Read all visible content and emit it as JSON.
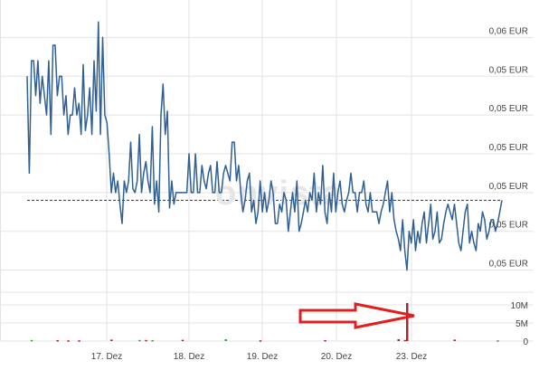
{
  "watermark": "onvista",
  "colors": {
    "price_line": "#2f5f93",
    "grid": "#e3e3e3",
    "reference_line": "#333333",
    "volume_down": "#a52a2a",
    "volume_up": "#3aa33a",
    "arrow": "#e02020"
  },
  "chart_data": [
    {
      "type": "line",
      "title": "",
      "xlabel": "",
      "ylabel": "",
      "x_tick_labels": [
        "17. Dez",
        "18. Dez",
        "19. Dez",
        "20. Dez",
        "23. Dez"
      ],
      "y_tick_labels": [
        "0,06 EUR",
        "0,05 EUR",
        "0,05 EUR",
        "0,05 EUR",
        "0,05 EUR",
        "0,05 EUR",
        "0,05 EUR"
      ],
      "y_tick_values": [
        0.0565,
        0.0555,
        0.0545,
        0.0535,
        0.0525,
        0.0515,
        0.0505
      ],
      "ylim": [
        0.05,
        0.057
      ],
      "reference_line_value": 0.0523,
      "grid": true,
      "series": [
        {
          "values": [
            0.0555,
            0.053,
            0.0559,
            0.0559,
            0.055,
            0.0559,
            0.0548,
            0.0555,
            0.055,
            0.0545,
            0.0559,
            0.054,
            0.0563,
            0.0563,
            0.055,
            0.0555,
            0.0555,
            0.0545,
            0.055,
            0.054,
            0.0545,
            0.0545,
            0.0552,
            0.0545,
            0.0548,
            0.054,
            0.0558,
            0.0541,
            0.0545,
            0.0552,
            0.054,
            0.0559,
            0.0546,
            0.0569,
            0.054,
            0.0565,
            0.0545,
            0.0543,
            0.0535,
            0.0525,
            0.053,
            0.0525,
            0.0528,
            0.0522,
            0.0517,
            0.0528,
            0.0525,
            0.0528,
            0.0538,
            0.0526,
            0.0525,
            0.0528,
            0.054,
            0.0525,
            0.053,
            0.0533,
            0.0528,
            0.0525,
            0.0542,
            0.0522,
            0.0528,
            0.052,
            0.0545,
            0.0553,
            0.054,
            0.0546,
            0.0521,
            0.0528,
            0.0522,
            0.0525,
            0.0525,
            0.0525,
            0.0525,
            0.0525,
            0.0525,
            0.0535,
            0.0525,
            0.0525,
            0.0535,
            0.0525,
            0.0525,
            0.0532,
            0.0528,
            0.0526,
            0.053,
            0.0532,
            0.0525,
            0.0525,
            0.0533,
            0.0525,
            0.0525,
            0.053,
            0.0532,
            0.053,
            0.0528,
            0.0538,
            0.0538,
            0.0528,
            0.0532,
            0.0525,
            0.052,
            0.0523,
            0.0528,
            0.053,
            0.052,
            0.0523,
            0.0517,
            0.052,
            0.0528,
            0.052,
            0.0525,
            0.052,
            0.0523,
            0.0528,
            0.0525,
            0.0517,
            0.0517,
            0.0522,
            0.052,
            0.0525,
            0.0523,
            0.0515,
            0.052,
            0.0525,
            0.052,
            0.0528,
            0.0515,
            0.0517,
            0.052,
            0.0523,
            0.052,
            0.0525,
            0.0523,
            0.053,
            0.052,
            0.0525,
            0.0522,
            0.0532,
            0.052,
            0.0517,
            0.0525,
            0.052,
            0.053,
            0.052,
            0.0525,
            0.0528,
            0.0522,
            0.052,
            0.0523,
            0.0525,
            0.053,
            0.0525,
            0.0525,
            0.052,
            0.0525,
            0.0525,
            0.0528,
            0.0522,
            0.052,
            0.0525,
            0.052,
            0.052,
            0.052,
            0.0517,
            0.052,
            0.0522,
            0.0525,
            0.0528,
            0.052,
            0.0525,
            0.0518,
            0.0515,
            0.0513,
            0.051,
            0.0518,
            0.051,
            0.0505,
            0.0515,
            0.0512,
            0.0518,
            0.051,
            0.0515,
            0.0512,
            0.0517,
            0.052,
            0.0512,
            0.0517,
            0.0522,
            0.0513,
            0.0515,
            0.052,
            0.0512,
            0.0513,
            0.0517,
            0.052,
            0.0522,
            0.052,
            0.0518,
            0.0522,
            0.0517,
            0.0512,
            0.051,
            0.0515,
            0.052,
            0.0522,
            0.0512,
            0.0515,
            0.0512,
            0.051,
            0.0517,
            0.0515,
            0.052,
            0.0518,
            0.0513,
            0.0515,
            0.0518,
            0.0518,
            0.0515,
            0.0517,
            0.052,
            0.0523
          ]
        }
      ]
    },
    {
      "type": "bar",
      "title": "",
      "y_tick_labels": [
        "10M",
        "5M",
        "0"
      ],
      "y_tick_values": [
        10000000,
        5000000,
        0
      ],
      "ylim": [
        0,
        13000000
      ],
      "annotation": "red arrow pointing to the tallest volume bar",
      "bars": [
        {
          "x": 2,
          "value": 300000,
          "dir": "up"
        },
        {
          "x": 14,
          "value": 250000,
          "dir": "down"
        },
        {
          "x": 19,
          "value": 200000,
          "dir": "down"
        },
        {
          "x": 24,
          "value": 200000,
          "dir": "down"
        },
        {
          "x": 39,
          "value": 400000,
          "dir": "down"
        },
        {
          "x": 52,
          "value": 300000,
          "dir": "up"
        },
        {
          "x": 55,
          "value": 300000,
          "dir": "down"
        },
        {
          "x": 58,
          "value": 250000,
          "dir": "up"
        },
        {
          "x": 72,
          "value": 350000,
          "dir": "down"
        },
        {
          "x": 92,
          "value": 500000,
          "dir": "up"
        },
        {
          "x": 108,
          "value": 200000,
          "dir": "down"
        },
        {
          "x": 138,
          "value": 250000,
          "dir": "down"
        },
        {
          "x": 172,
          "value": 500000,
          "dir": "down"
        },
        {
          "x": 175,
          "value": 300000,
          "dir": "down"
        },
        {
          "x": 176,
          "value": 10500000,
          "dir": "down"
        },
        {
          "x": 198,
          "value": 400000,
          "dir": "down"
        },
        {
          "x": 218,
          "value": 200000,
          "dir": "up"
        }
      ]
    }
  ]
}
